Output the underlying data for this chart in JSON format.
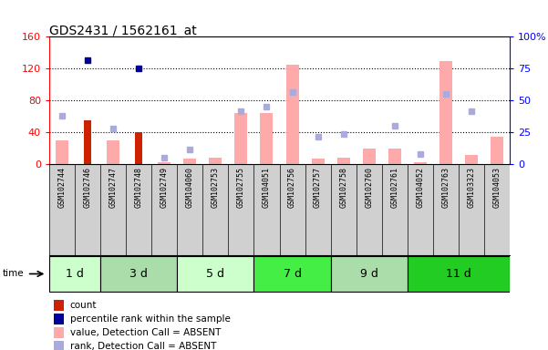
{
  "title": "GDS2431 / 1562161_at",
  "samples": [
    "GSM102744",
    "GSM102746",
    "GSM102747",
    "GSM102748",
    "GSM102749",
    "GSM104060",
    "GSM102753",
    "GSM102755",
    "GSM104051",
    "GSM102756",
    "GSM102757",
    "GSM102758",
    "GSM102760",
    "GSM102761",
    "GSM104052",
    "GSM102763",
    "GSM103323",
    "GSM104053"
  ],
  "time_groups": [
    {
      "label": "1 d",
      "start": 0,
      "end": 1,
      "color": "#ccffcc"
    },
    {
      "label": "3 d",
      "start": 2,
      "end": 4,
      "color": "#aaddaa"
    },
    {
      "label": "5 d",
      "start": 5,
      "end": 7,
      "color": "#ccffcc"
    },
    {
      "label": "7 d",
      "start": 8,
      "end": 10,
      "color": "#44ee44"
    },
    {
      "label": "9 d",
      "start": 11,
      "end": 13,
      "color": "#aaddaa"
    },
    {
      "label": "11 d",
      "start": 14,
      "end": 17,
      "color": "#22cc22"
    }
  ],
  "count_values": [
    0,
    55,
    0,
    40,
    0,
    0,
    0,
    0,
    0,
    0,
    0,
    0,
    0,
    0,
    0,
    0,
    0,
    0
  ],
  "percentile_rank_values": [
    0,
    82,
    0,
    75,
    0,
    0,
    0,
    0,
    0,
    0,
    0,
    0,
    0,
    0,
    0,
    0,
    0,
    0
  ],
  "absent_value_bars": [
    30,
    0,
    30,
    0,
    3,
    7,
    8,
    65,
    65,
    125,
    7,
    8,
    20,
    20,
    3,
    130,
    12,
    35
  ],
  "absent_rank_bars_pct": [
    38,
    0,
    28,
    0,
    5,
    12,
    0,
    42,
    45,
    57,
    22,
    24,
    0,
    30,
    8,
    55,
    42,
    0
  ],
  "ylim_left": [
    0,
    160
  ],
  "ylim_right": [
    0,
    100
  ],
  "left_ticks": [
    0,
    40,
    80,
    120,
    160
  ],
  "right_ticks": [
    0,
    25,
    50,
    75,
    100
  ],
  "bar_color_count": "#cc2200",
  "bar_color_rank": "#000099",
  "bar_color_absent_value": "#ffaaaa",
  "bar_color_absent_rank": "#aaaadd",
  "plot_bg": "#e8e8e8",
  "xlabel_bg": "#d0d0d0"
}
